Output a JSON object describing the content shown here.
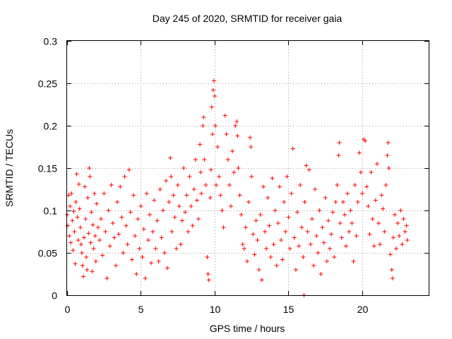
{
  "chart_data": {
    "type": "scatter",
    "title": "Day 245 of 2020, SRMTID for receiver gaia",
    "xlabel": "GPS time / hours",
    "ylabel": "SRMTID / TECUs",
    "xlim": [
      0,
      24.5
    ],
    "ylim": [
      0,
      0.3
    ],
    "x_ticks": [
      0,
      5,
      10,
      15,
      20
    ],
    "x_tick_labels": [
      "0",
      "5",
      "10",
      "15",
      "20"
    ],
    "y_ticks": [
      0,
      0.05,
      0.1,
      0.15,
      0.2,
      0.25,
      0.3
    ],
    "y_tick_labels": [
      "0",
      "0.05",
      "0.1",
      "0.15",
      "0.2",
      "0.25",
      "0.3"
    ],
    "grid": true,
    "marker": "plus",
    "color": "#ff0000",
    "series": [
      {
        "name": "SRMTID",
        "points": [
          [
            0.0,
            0.095
          ],
          [
            0.05,
            0.082
          ],
          [
            0.1,
            0.118
          ],
          [
            0.15,
            0.07
          ],
          [
            0.2,
            0.105
          ],
          [
            0.25,
            0.062
          ],
          [
            0.3,
            0.12
          ],
          [
            0.35,
            0.088
          ],
          [
            0.4,
            0.053
          ],
          [
            0.45,
            0.099
          ],
          [
            0.5,
            0.075
          ],
          [
            0.55,
            0.037
          ],
          [
            0.6,
            0.11
          ],
          [
            0.65,
            0.143
          ],
          [
            0.7,
            0.092
          ],
          [
            0.75,
            0.065
          ],
          [
            0.8,
            0.131
          ],
          [
            0.85,
            0.102
          ],
          [
            0.9,
            0.08
          ],
          [
            0.95,
            0.06
          ],
          [
            1.0,
            0.05
          ],
          [
            1.05,
            0.035
          ],
          [
            1.1,
            0.022
          ],
          [
            1.15,
            0.068
          ],
          [
            1.2,
            0.128
          ],
          [
            1.25,
            0.09
          ],
          [
            1.3,
            0.045
          ],
          [
            1.35,
            0.03
          ],
          [
            1.4,
            0.115
          ],
          [
            1.45,
            0.073
          ],
          [
            1.5,
            0.15
          ],
          [
            1.55,
            0.14
          ],
          [
            1.6,
            0.062
          ],
          [
            1.65,
            0.098
          ],
          [
            1.7,
            0.028
          ],
          [
            1.75,
            0.083
          ],
          [
            1.8,
            0.055
          ],
          [
            1.85,
            0.12
          ],
          [
            1.9,
            0.07
          ],
          [
            1.95,
            0.04
          ],
          [
            2.0,
            0.108
          ],
          [
            2.1,
            0.08
          ],
          [
            2.2,
            0.065
          ],
          [
            2.3,
            0.09
          ],
          [
            2.4,
            0.047
          ],
          [
            2.5,
            0.12
          ],
          [
            2.6,
            0.075
          ],
          [
            2.7,
            0.02
          ],
          [
            2.8,
            0.1
          ],
          [
            2.9,
            0.058
          ],
          [
            3.0,
            0.13
          ],
          [
            3.1,
            0.085
          ],
          [
            3.2,
            0.068
          ],
          [
            3.3,
            0.035
          ],
          [
            3.4,
            0.11
          ],
          [
            3.5,
            0.072
          ],
          [
            3.6,
            0.128
          ],
          [
            3.7,
            0.092
          ],
          [
            3.8,
            0.05
          ],
          [
            3.9,
            0.14
          ],
          [
            4.0,
            0.082
          ],
          [
            4.1,
            0.06
          ],
          [
            4.2,
            0.148
          ],
          [
            4.3,
            0.098
          ],
          [
            4.4,
            0.042
          ],
          [
            4.5,
            0.118
          ],
          [
            4.6,
            0.07
          ],
          [
            4.7,
            0.025
          ],
          [
            4.8,
            0.09
          ],
          [
            4.9,
            0.055
          ],
          [
            5.0,
            0.105
          ],
          [
            5.1,
            0.045
          ],
          [
            5.2,
            0.078
          ],
          [
            5.3,
            0.02
          ],
          [
            5.4,
            0.12
          ],
          [
            5.5,
            0.065
          ],
          [
            5.6,
            0.095
          ],
          [
            5.7,
            0.038
          ],
          [
            5.8,
            0.075
          ],
          [
            5.9,
            0.112
          ],
          [
            6.0,
            0.055
          ],
          [
            6.1,
            0.088
          ],
          [
            6.2,
            0.04
          ],
          [
            6.3,
            0.125
          ],
          [
            6.4,
            0.068
          ],
          [
            6.5,
            0.1
          ],
          [
            6.6,
            0.05
          ],
          [
            6.7,
            0.135
          ],
          [
            6.8,
            0.032
          ],
          [
            6.9,
            0.11
          ],
          [
            7.0,
            0.162
          ],
          [
            7.05,
            0.14
          ],
          [
            7.1,
            0.075
          ],
          [
            7.2,
            0.118
          ],
          [
            7.3,
            0.092
          ],
          [
            7.4,
            0.055
          ],
          [
            7.5,
            0.13
          ],
          [
            7.6,
            0.105
          ],
          [
            7.7,
            0.06
          ],
          [
            7.8,
            0.088
          ],
          [
            7.9,
            0.15
          ],
          [
            8.0,
            0.098
          ],
          [
            8.1,
            0.118
          ],
          [
            8.2,
            0.075
          ],
          [
            8.3,
            0.14
          ],
          [
            8.4,
            0.105
          ],
          [
            8.5,
            0.082
          ],
          [
            8.6,
            0.125
          ],
          [
            8.7,
            0.16
          ],
          [
            8.8,
            0.112
          ],
          [
            8.9,
            0.09
          ],
          [
            9.0,
            0.178
          ],
          [
            9.05,
            0.145
          ],
          [
            9.1,
            0.12
          ],
          [
            9.2,
            0.2
          ],
          [
            9.25,
            0.21
          ],
          [
            9.3,
            0.16
          ],
          [
            9.4,
            0.13
          ],
          [
            9.5,
            0.045
          ],
          [
            9.55,
            0.025
          ],
          [
            9.6,
            0.018
          ],
          [
            9.7,
            0.115
          ],
          [
            9.75,
            0.148
          ],
          [
            9.8,
            0.222
          ],
          [
            9.85,
            0.19
          ],
          [
            9.9,
            0.242
          ],
          [
            9.95,
            0.253
          ],
          [
            10.0,
            0.235
          ],
          [
            10.05,
            0.2
          ],
          [
            10.1,
            0.13
          ],
          [
            10.2,
            0.175
          ],
          [
            10.3,
            0.14
          ],
          [
            10.4,
            0.118
          ],
          [
            10.5,
            0.1
          ],
          [
            10.6,
            0.08
          ],
          [
            10.7,
            0.212
          ],
          [
            10.8,
            0.19
          ],
          [
            10.9,
            0.16
          ],
          [
            11.0,
            0.13
          ],
          [
            11.1,
            0.105
          ],
          [
            11.2,
            0.17
          ],
          [
            11.3,
            0.145
          ],
          [
            11.4,
            0.2
          ],
          [
            11.5,
            0.205
          ],
          [
            11.55,
            0.188
          ],
          [
            11.6,
            0.15
          ],
          [
            11.7,
            0.118
          ],
          [
            11.8,
            0.095
          ],
          [
            11.9,
            0.06
          ],
          [
            12.0,
            0.055
          ],
          [
            12.1,
            0.08
          ],
          [
            12.2,
            0.04
          ],
          [
            12.3,
            0.11
          ],
          [
            12.4,
            0.186
          ],
          [
            12.45,
            0.175
          ],
          [
            12.5,
            0.14
          ],
          [
            12.6,
            0.072
          ],
          [
            12.7,
            0.048
          ],
          [
            12.8,
            0.088
          ],
          [
            12.9,
            0.065
          ],
          [
            13.0,
            0.03
          ],
          [
            13.1,
            0.095
          ],
          [
            13.2,
            0.018
          ],
          [
            13.3,
            0.128
          ],
          [
            13.4,
            0.075
          ],
          [
            13.5,
            0.055
          ],
          [
            13.6,
            0.115
          ],
          [
            13.7,
            0.082
          ],
          [
            13.8,
            0.045
          ],
          [
            13.9,
            0.138
          ],
          [
            14.0,
            0.06
          ],
          [
            14.1,
            0.1
          ],
          [
            14.2,
            0.035
          ],
          [
            14.3,
            0.085
          ],
          [
            14.4,
            0.128
          ],
          [
            14.5,
            0.065
          ],
          [
            14.6,
            0.042
          ],
          [
            14.7,
            0.11
          ],
          [
            14.8,
            0.075
          ],
          [
            14.9,
            0.14
          ],
          [
            15.0,
            0.092
          ],
          [
            15.1,
            0.055
          ],
          [
            15.2,
            0.12
          ],
          [
            15.3,
            0.173
          ],
          [
            15.4,
            0.068
          ],
          [
            15.5,
            0.03
          ],
          [
            15.6,
            0.098
          ],
          [
            15.7,
            0.058
          ],
          [
            15.8,
            0.13
          ],
          [
            15.9,
            0.08
          ],
          [
            16.0,
            0.045
          ],
          [
            16.05,
            0.0
          ],
          [
            16.1,
            0.11
          ],
          [
            16.2,
            0.153
          ],
          [
            16.3,
            0.075
          ],
          [
            16.4,
            0.148
          ],
          [
            16.5,
            0.06
          ],
          [
            16.6,
            0.09
          ],
          [
            16.7,
            0.035
          ],
          [
            16.8,
            0.125
          ],
          [
            16.9,
            0.07
          ],
          [
            17.0,
            0.05
          ],
          [
            17.1,
            0.1
          ],
          [
            17.2,
            0.025
          ],
          [
            17.3,
            0.08
          ],
          [
            17.4,
            0.062
          ],
          [
            17.5,
            0.115
          ],
          [
            17.6,
            0.04
          ],
          [
            17.7,
            0.088
          ],
          [
            17.8,
            0.055
          ],
          [
            17.9,
            0.072
          ],
          [
            18.0,
            0.098
          ],
          [
            18.1,
            0.045
          ],
          [
            18.2,
            0.11
          ],
          [
            18.3,
            0.13
          ],
          [
            18.4,
            0.165
          ],
          [
            18.45,
            0.18
          ],
          [
            18.5,
            0.085
          ],
          [
            18.6,
            0.068
          ],
          [
            18.7,
            0.11
          ],
          [
            18.8,
            0.095
          ],
          [
            18.9,
            0.058
          ],
          [
            19.0,
            0.12
          ],
          [
            19.1,
            0.075
          ],
          [
            19.2,
            0.1
          ],
          [
            19.3,
            0.085
          ],
          [
            19.4,
            0.04
          ],
          [
            19.5,
            0.13
          ],
          [
            19.6,
            0.07
          ],
          [
            19.7,
            0.11
          ],
          [
            19.8,
            0.168
          ],
          [
            19.9,
            0.145
          ],
          [
            20.0,
            0.12
          ],
          [
            20.1,
            0.184
          ],
          [
            20.2,
            0.182
          ],
          [
            20.3,
            0.128
          ],
          [
            20.4,
            0.105
          ],
          [
            20.5,
            0.072
          ],
          [
            20.6,
            0.145
          ],
          [
            20.7,
            0.09
          ],
          [
            20.8,
            0.058
          ],
          [
            20.9,
            0.112
          ],
          [
            21.0,
            0.155
          ],
          [
            21.1,
            0.085
          ],
          [
            21.2,
            0.06
          ],
          [
            21.3,
            0.118
          ],
          [
            21.4,
            0.102
          ],
          [
            21.5,
            0.075
          ],
          [
            21.6,
            0.13
          ],
          [
            21.7,
            0.165
          ],
          [
            21.75,
            0.18
          ],
          [
            21.8,
            0.15
          ],
          [
            21.9,
            0.048
          ],
          [
            22.0,
            0.03
          ],
          [
            22.05,
            0.02
          ],
          [
            22.1,
            0.068
          ],
          [
            22.2,
            0.095
          ],
          [
            22.3,
            0.055
          ],
          [
            22.4,
            0.085
          ],
          [
            22.5,
            0.07
          ],
          [
            22.6,
            0.1
          ],
          [
            22.7,
            0.06
          ],
          [
            22.8,
            0.09
          ],
          [
            22.9,
            0.075
          ],
          [
            23.0,
            0.082
          ],
          [
            23.05,
            0.065
          ]
        ]
      }
    ]
  }
}
